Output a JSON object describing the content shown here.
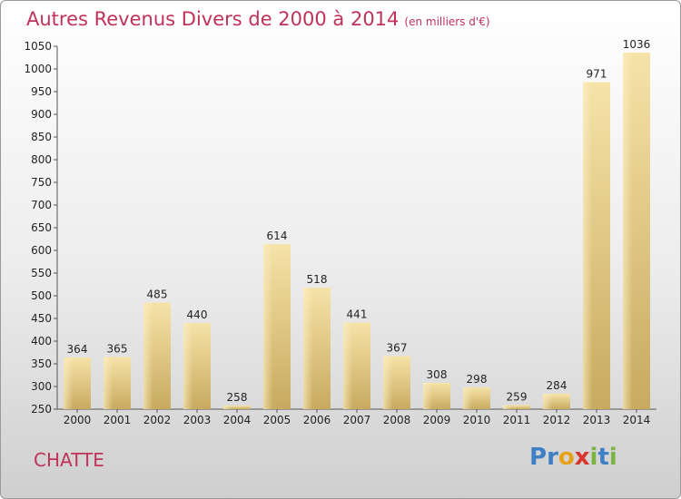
{
  "title": "Autres Revenus Divers de 2000 à 2014",
  "subtitle": "(en milliers d'€)",
  "commune": "CHATTE",
  "logo": {
    "letters": [
      "P",
      "r",
      "o",
      "x",
      "i",
      "t",
      "i"
    ],
    "colors": [
      "#3f7fc4",
      "#3f7fc4",
      "#e8a21a",
      "#d9352b",
      "#7cb342",
      "#3f7fc4",
      "#7cb342"
    ]
  },
  "colors": {
    "bar_light": "#f4dc9a",
    "bar_dark": "#c9ac62",
    "title": "#c0325a"
  },
  "chart_data": {
    "type": "bar",
    "categories": [
      "2000",
      "2001",
      "2002",
      "2003",
      "2004",
      "2005",
      "2006",
      "2007",
      "2008",
      "2009",
      "2010",
      "2011",
      "2012",
      "2013",
      "2014"
    ],
    "values": [
      364,
      365,
      485,
      440,
      258,
      614,
      518,
      441,
      367,
      308,
      298,
      259,
      284,
      971,
      1036
    ],
    "ylim": [
      250,
      1050
    ],
    "yticks": [
      250,
      300,
      350,
      400,
      450,
      500,
      550,
      600,
      650,
      700,
      750,
      800,
      850,
      900,
      950,
      1000,
      1050
    ],
    "grid": false,
    "legend": "none"
  }
}
